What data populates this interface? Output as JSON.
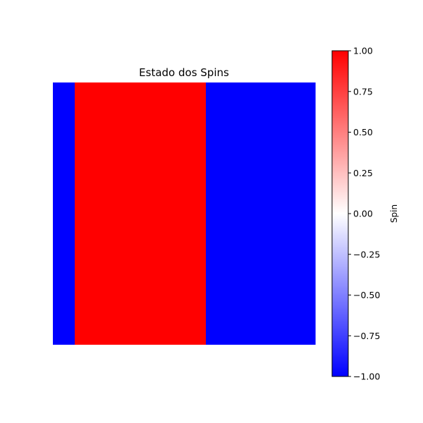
{
  "chart_data": {
    "type": "heatmap",
    "title": "Estado dos Spins",
    "grid": false,
    "axes_visible": false,
    "columns": 12,
    "rows": 12,
    "column_values": [
      -1,
      1,
      1,
      1,
      1,
      1,
      1,
      -1,
      -1,
      -1,
      -1,
      -1
    ],
    "colormap": {
      "name": "bwr",
      "low_color": "#0000ff",
      "mid_color": "#ffffff",
      "high_color": "#ff0000",
      "vmin": -1.0,
      "vmax": 1.0
    },
    "colorbar": {
      "label": "Spin",
      "placement": "right",
      "ticks": [
        1.0,
        0.75,
        0.5,
        0.25,
        0.0,
        -0.25,
        -0.5,
        -0.75,
        -1.0
      ],
      "tick_labels": [
        "1.00",
        "0.75",
        "0.50",
        "0.25",
        "0.00",
        "−0.25",
        "−0.50",
        "−0.75",
        "−1.00"
      ]
    }
  }
}
